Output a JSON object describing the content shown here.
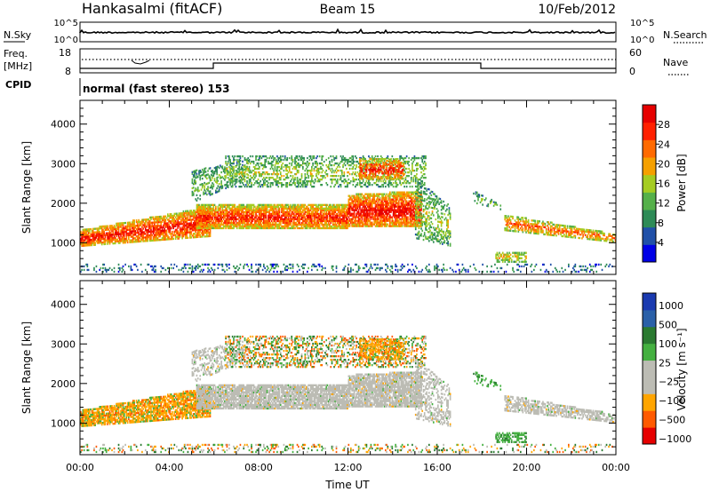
{
  "header": {
    "station": "Hankasalmi (fitACF)",
    "beam": "Beam 15",
    "date": "10/Feb/2012"
  },
  "nsky_panel": {
    "left_label": "N.Sky",
    "right_label": "N.Search",
    "left_ticks": [
      "10^5",
      "10^0"
    ],
    "right_ticks": [
      "10^5",
      "10^0"
    ]
  },
  "freq_panel": {
    "left_label_1": "Freq.",
    "left_label_2": "[MHz]",
    "right_label": "Nave",
    "left_ticks": [
      "18",
      "8"
    ],
    "right_ticks": [
      "60",
      "0"
    ]
  },
  "cpid": {
    "label": "CPID",
    "text": "normal (fast stereo) 153"
  },
  "colors": {
    "power_scale": [
      "#0000e6",
      "#2050a8",
      "#2e8b57",
      "#55b04a",
      "#a5cc22",
      "#f5a000",
      "#ff6a00",
      "#ff2000",
      "#e60000"
    ],
    "velocity_scale": [
      "#e60000",
      "#ff5a00",
      "#ffa500",
      "#bcbcb4",
      "#bcbcb4",
      "#44b040",
      "#2a7a30",
      "#2a60a8",
      "#1a3ab0"
    ],
    "ground_scatter": "#bcbcb4"
  },
  "chart_data": [
    {
      "type": "heatmap",
      "name": "power",
      "x_range_hours": [
        0,
        24
      ],
      "ylabel": "Slant Range [km]",
      "ylim": [
        200,
        4600
      ],
      "y_ticks": [
        "1000",
        "2000",
        "3000",
        "4000"
      ],
      "colorbar": {
        "label": "Power [dB]",
        "ticks": [
          "4",
          "8",
          "12",
          "16",
          "20",
          "24",
          "28"
        ],
        "range": [
          0,
          32
        ]
      }
    },
    {
      "type": "heatmap",
      "name": "velocity",
      "x_range_hours": [
        0,
        24
      ],
      "xlabel": "Time UT",
      "x_ticks": [
        "00:00",
        "04:00",
        "08:00",
        "12:00",
        "16:00",
        "20:00",
        "00:00"
      ],
      "ylabel": "Slant Range [km]",
      "ylim": [
        200,
        4600
      ],
      "y_ticks": [
        "1000",
        "2000",
        "3000",
        "4000"
      ],
      "colorbar": {
        "label": "Velocity [m s⁻¹]",
        "ticks": [
          "1000",
          "500",
          "100",
          "25",
          "−25",
          "−100",
          "−500",
          "−1000"
        ]
      }
    }
  ]
}
